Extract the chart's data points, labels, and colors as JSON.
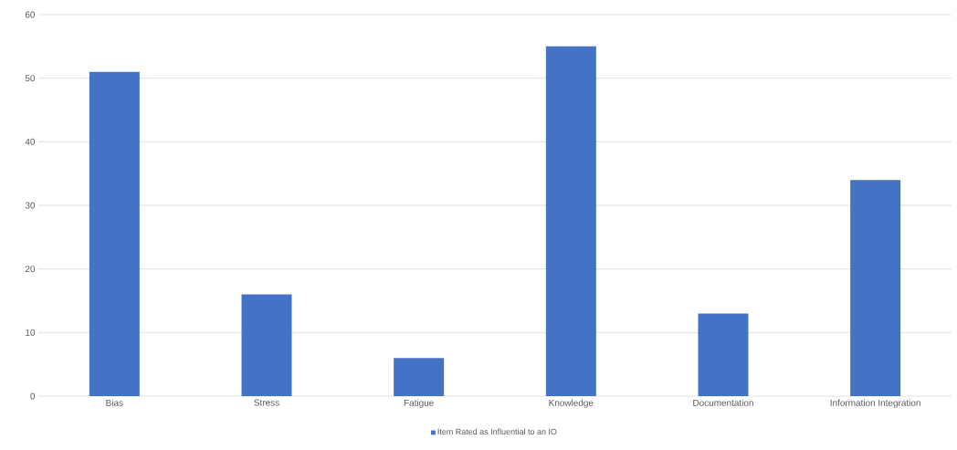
{
  "chart_data": {
    "type": "bar",
    "categories": [
      "Bias",
      "Stress",
      "Fatigue",
      "Knowledge",
      "Documentation",
      "Information Integration"
    ],
    "series": [
      {
        "name": "Item Rated as Influential to an IO",
        "color": "#4472c4",
        "values": [
          51,
          16,
          6,
          55,
          13,
          34
        ]
      }
    ],
    "ylim": [
      0,
      60
    ],
    "yticks": [
      0,
      10,
      20,
      30,
      40,
      50,
      60
    ],
    "grid": "y",
    "legend": "bottom"
  }
}
